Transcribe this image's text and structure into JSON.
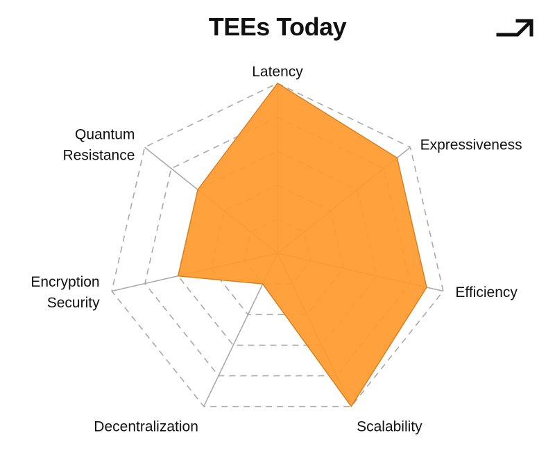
{
  "title": "TEEs Today",
  "icons": {
    "corner": "arrow-up-right-icon"
  },
  "colors": {
    "fill": "#FF9A2E",
    "stroke": "#D9801F",
    "axis": "#AAAAAA",
    "grid": "#AAAAAA",
    "text": "#111111"
  },
  "chart_data": {
    "type": "radar",
    "title": "TEEs Today",
    "axes": [
      "Latency",
      "Expressiveness",
      "Efficiency",
      "Scalability",
      "Decentralization",
      "Encryption Security",
      "Quantum Resistance"
    ],
    "axis_label_lines": [
      [
        "Latency"
      ],
      [
        "Expressiveness"
      ],
      [
        "Efficiency"
      ],
      [
        "Scalability"
      ],
      [
        "Decentralization"
      ],
      [
        "Encryption",
        "Security"
      ],
      [
        "Quantum",
        "Resistance"
      ]
    ],
    "series": [
      {
        "values": [
          5,
          4.5,
          4.5,
          5,
          1,
          3,
          3
        ]
      }
    ],
    "range": [
      0,
      5
    ],
    "grid_levels": 5,
    "grid": true,
    "legend": "none"
  }
}
